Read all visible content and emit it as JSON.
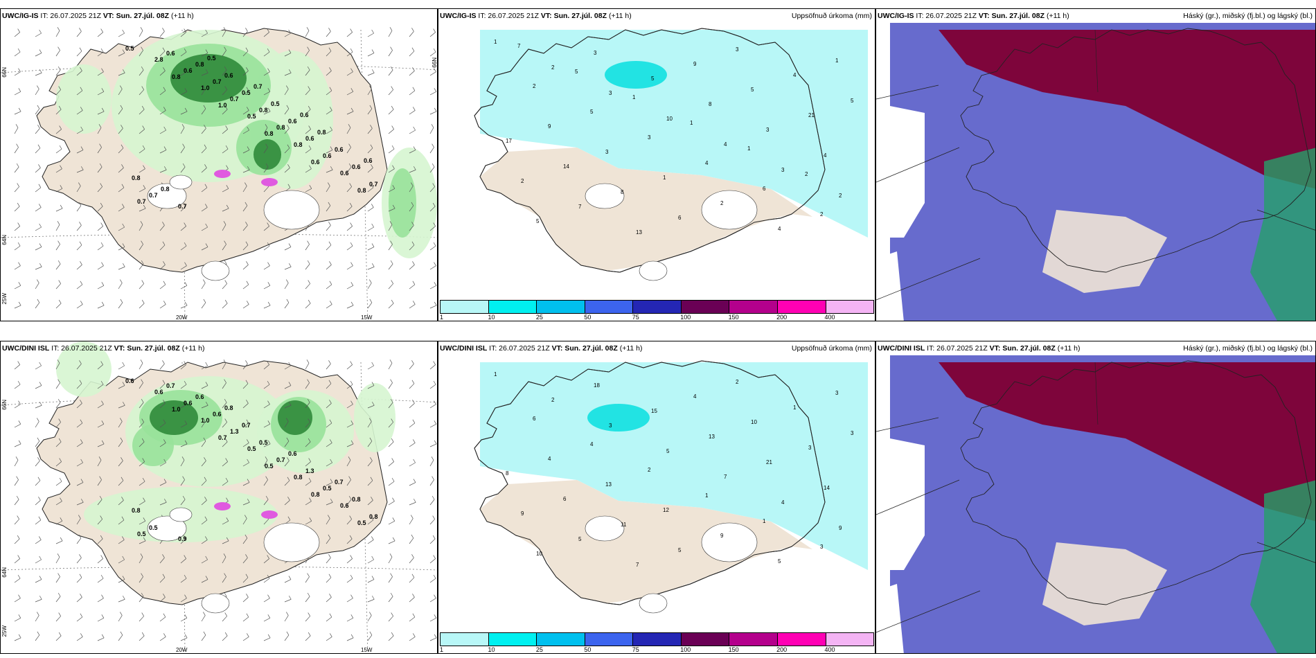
{
  "colors": {
    "land": "#efe4d6",
    "sea": "#ffffff",
    "precip_light": "#d6f5d0",
    "precip_mid": "#98e29a",
    "precip_dark": "#2f8a3a",
    "precip_vdark": "#0f4b1a",
    "accum": "#b8f7f7",
    "accum_high": "#22e3e3",
    "cloud_high": "#800033",
    "cloud_mid": "#5a5ec9",
    "cloud_low_green": "#26a06a"
  },
  "legend_colors": [
    "#b8f7f7",
    "#00f0f0",
    "#00c0ee",
    "#3c64ee",
    "#2426b4",
    "#6a0055",
    "#b4008c",
    "#ff00b4",
    "#f4b4f4"
  ],
  "legend_ticks": [
    "1",
    "10",
    "25",
    "50",
    "75",
    "100",
    "150",
    "200",
    "400"
  ],
  "rows": [
    {
      "model": "UWC/IG-IS",
      "it_label": "IT: 26.07.2025 21Z",
      "vt_label": "VT: Sun. 27.júl. 08Z",
      "lead": "(+11 h)",
      "lat_labels": [
        "66N",
        "65N",
        "64N"
      ],
      "lon_labels": [
        "25W",
        "20W",
        "15W"
      ],
      "precip_values": [
        "0.5",
        "0.8",
        "1.0",
        "0.8",
        "0.6",
        "0.8",
        "2.8",
        "1.0",
        "0.5",
        "0.8",
        "0.6",
        "0.7",
        "0.6",
        "0.7",
        "0.8",
        "0.6",
        "0.7",
        "0.6",
        "0.7",
        "0.8",
        "0.6",
        "0.6",
        "0.7",
        "0.8",
        "0.5",
        "0.6",
        "0.6",
        "0.8",
        "0.7",
        "0.6",
        "0.5",
        "0.8",
        "0.6",
        "0.8",
        "0.5",
        "0.7",
        "0.6"
      ],
      "accum_title": "Uppsöfnuð úrkoma (mm)",
      "accum_values": [
        "1",
        "2",
        "3",
        "10",
        "4",
        "3",
        "2",
        "5",
        "3",
        "5",
        "8",
        "3",
        "4",
        "2",
        "7",
        "13",
        "9",
        "5",
        "21",
        "17",
        "14",
        "8",
        "6",
        "3",
        "4",
        "5",
        "9",
        "3",
        "1",
        "2",
        "4",
        "1",
        "2",
        "5",
        "3",
        "4",
        "6",
        "2",
        "7",
        "5",
        "1",
        "1",
        "1",
        "2"
      ],
      "cloud_title": "Háský (gr.), miðský (fj.bl.) og lágský (bl.)"
    },
    {
      "model": "UWC/DINI ISL",
      "it_label": "IT: 26.07.2025 21Z",
      "vt_label": "VT: Sun. 27.júl. 08Z",
      "lead": "(+11 h)",
      "lat_labels": [
        "66N",
        "65N",
        "64N"
      ],
      "lon_labels": [
        "25W",
        "20W",
        "15W"
      ],
      "precip_values": [
        "0.6",
        "1.0",
        "0.7",
        "0.5",
        "0.8",
        "0.5",
        "0.6",
        "1.0",
        "0.5",
        "0.8",
        "0.6",
        "0.5",
        "0.6",
        "1.3",
        "0.7",
        "0.5",
        "0.8",
        "0.7",
        "0.6",
        "0.5",
        "1.3",
        "0.8",
        "0.5",
        "0.6",
        "0.7",
        "0.6",
        "0.7",
        "0.8",
        "0.9",
        "0.8"
      ],
      "accum_title": "Uppsöfnuð úrkoma (mm)",
      "accum_values": [
        "1",
        "2",
        "3",
        "5",
        "7",
        "4",
        "9",
        "10",
        "18",
        "15",
        "13",
        "21",
        "14",
        "9",
        "5",
        "7",
        "4",
        "10",
        "3",
        "8",
        "6",
        "11",
        "5",
        "2",
        "1",
        "3",
        "4",
        "13",
        "12",
        "9",
        "5",
        "3",
        "6",
        "4",
        "2",
        "1",
        "1",
        "3"
      ],
      "cloud_title": "Háský (gr.), miðský (fj.bl.) og lágský (bl.)"
    }
  ]
}
